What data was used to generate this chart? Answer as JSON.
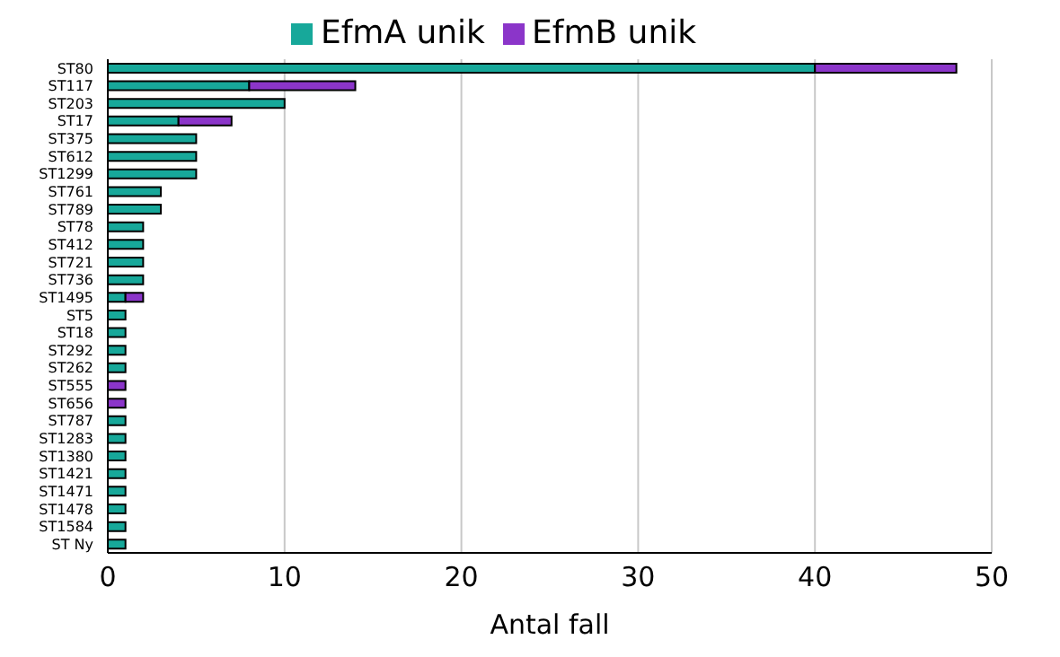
{
  "chart_data": {
    "type": "bar",
    "orientation": "horizontal",
    "stacked": true,
    "xlabel": "Antal fall",
    "categories": [
      "ST80",
      "ST117",
      "ST203",
      "ST17",
      "ST375",
      "ST612",
      "ST1299",
      "ST761",
      "ST789",
      "ST78",
      "ST412",
      "ST721",
      "ST736",
      "ST1495",
      "ST5",
      "ST18",
      "ST292",
      "ST262",
      "ST555",
      "ST656",
      "ST787",
      "ST1283",
      "ST1380",
      "ST1421",
      "ST1471",
      "ST1478",
      "ST1584",
      "ST Ny"
    ],
    "series": [
      {
        "name": "EfmA unik",
        "color": "#17a89a",
        "values": [
          40,
          8,
          10,
          4,
          5,
          5,
          5,
          3,
          3,
          2,
          2,
          2,
          2,
          1,
          1,
          1,
          1,
          1,
          0,
          0,
          1,
          1,
          1,
          1,
          1,
          1,
          1,
          1
        ]
      },
      {
        "name": "EfmB unik",
        "color": "#8b35c9",
        "values": [
          8,
          6,
          0,
          3,
          0,
          0,
          0,
          0,
          0,
          0,
          0,
          0,
          0,
          1,
          0,
          0,
          0,
          0,
          1,
          1,
          0,
          0,
          0,
          0,
          0,
          0,
          0,
          0
        ]
      }
    ],
    "xlim": [
      0,
      50
    ],
    "xticks": [
      0,
      10,
      20,
      30,
      40,
      50
    ],
    "grid": "x",
    "legend": "top"
  }
}
